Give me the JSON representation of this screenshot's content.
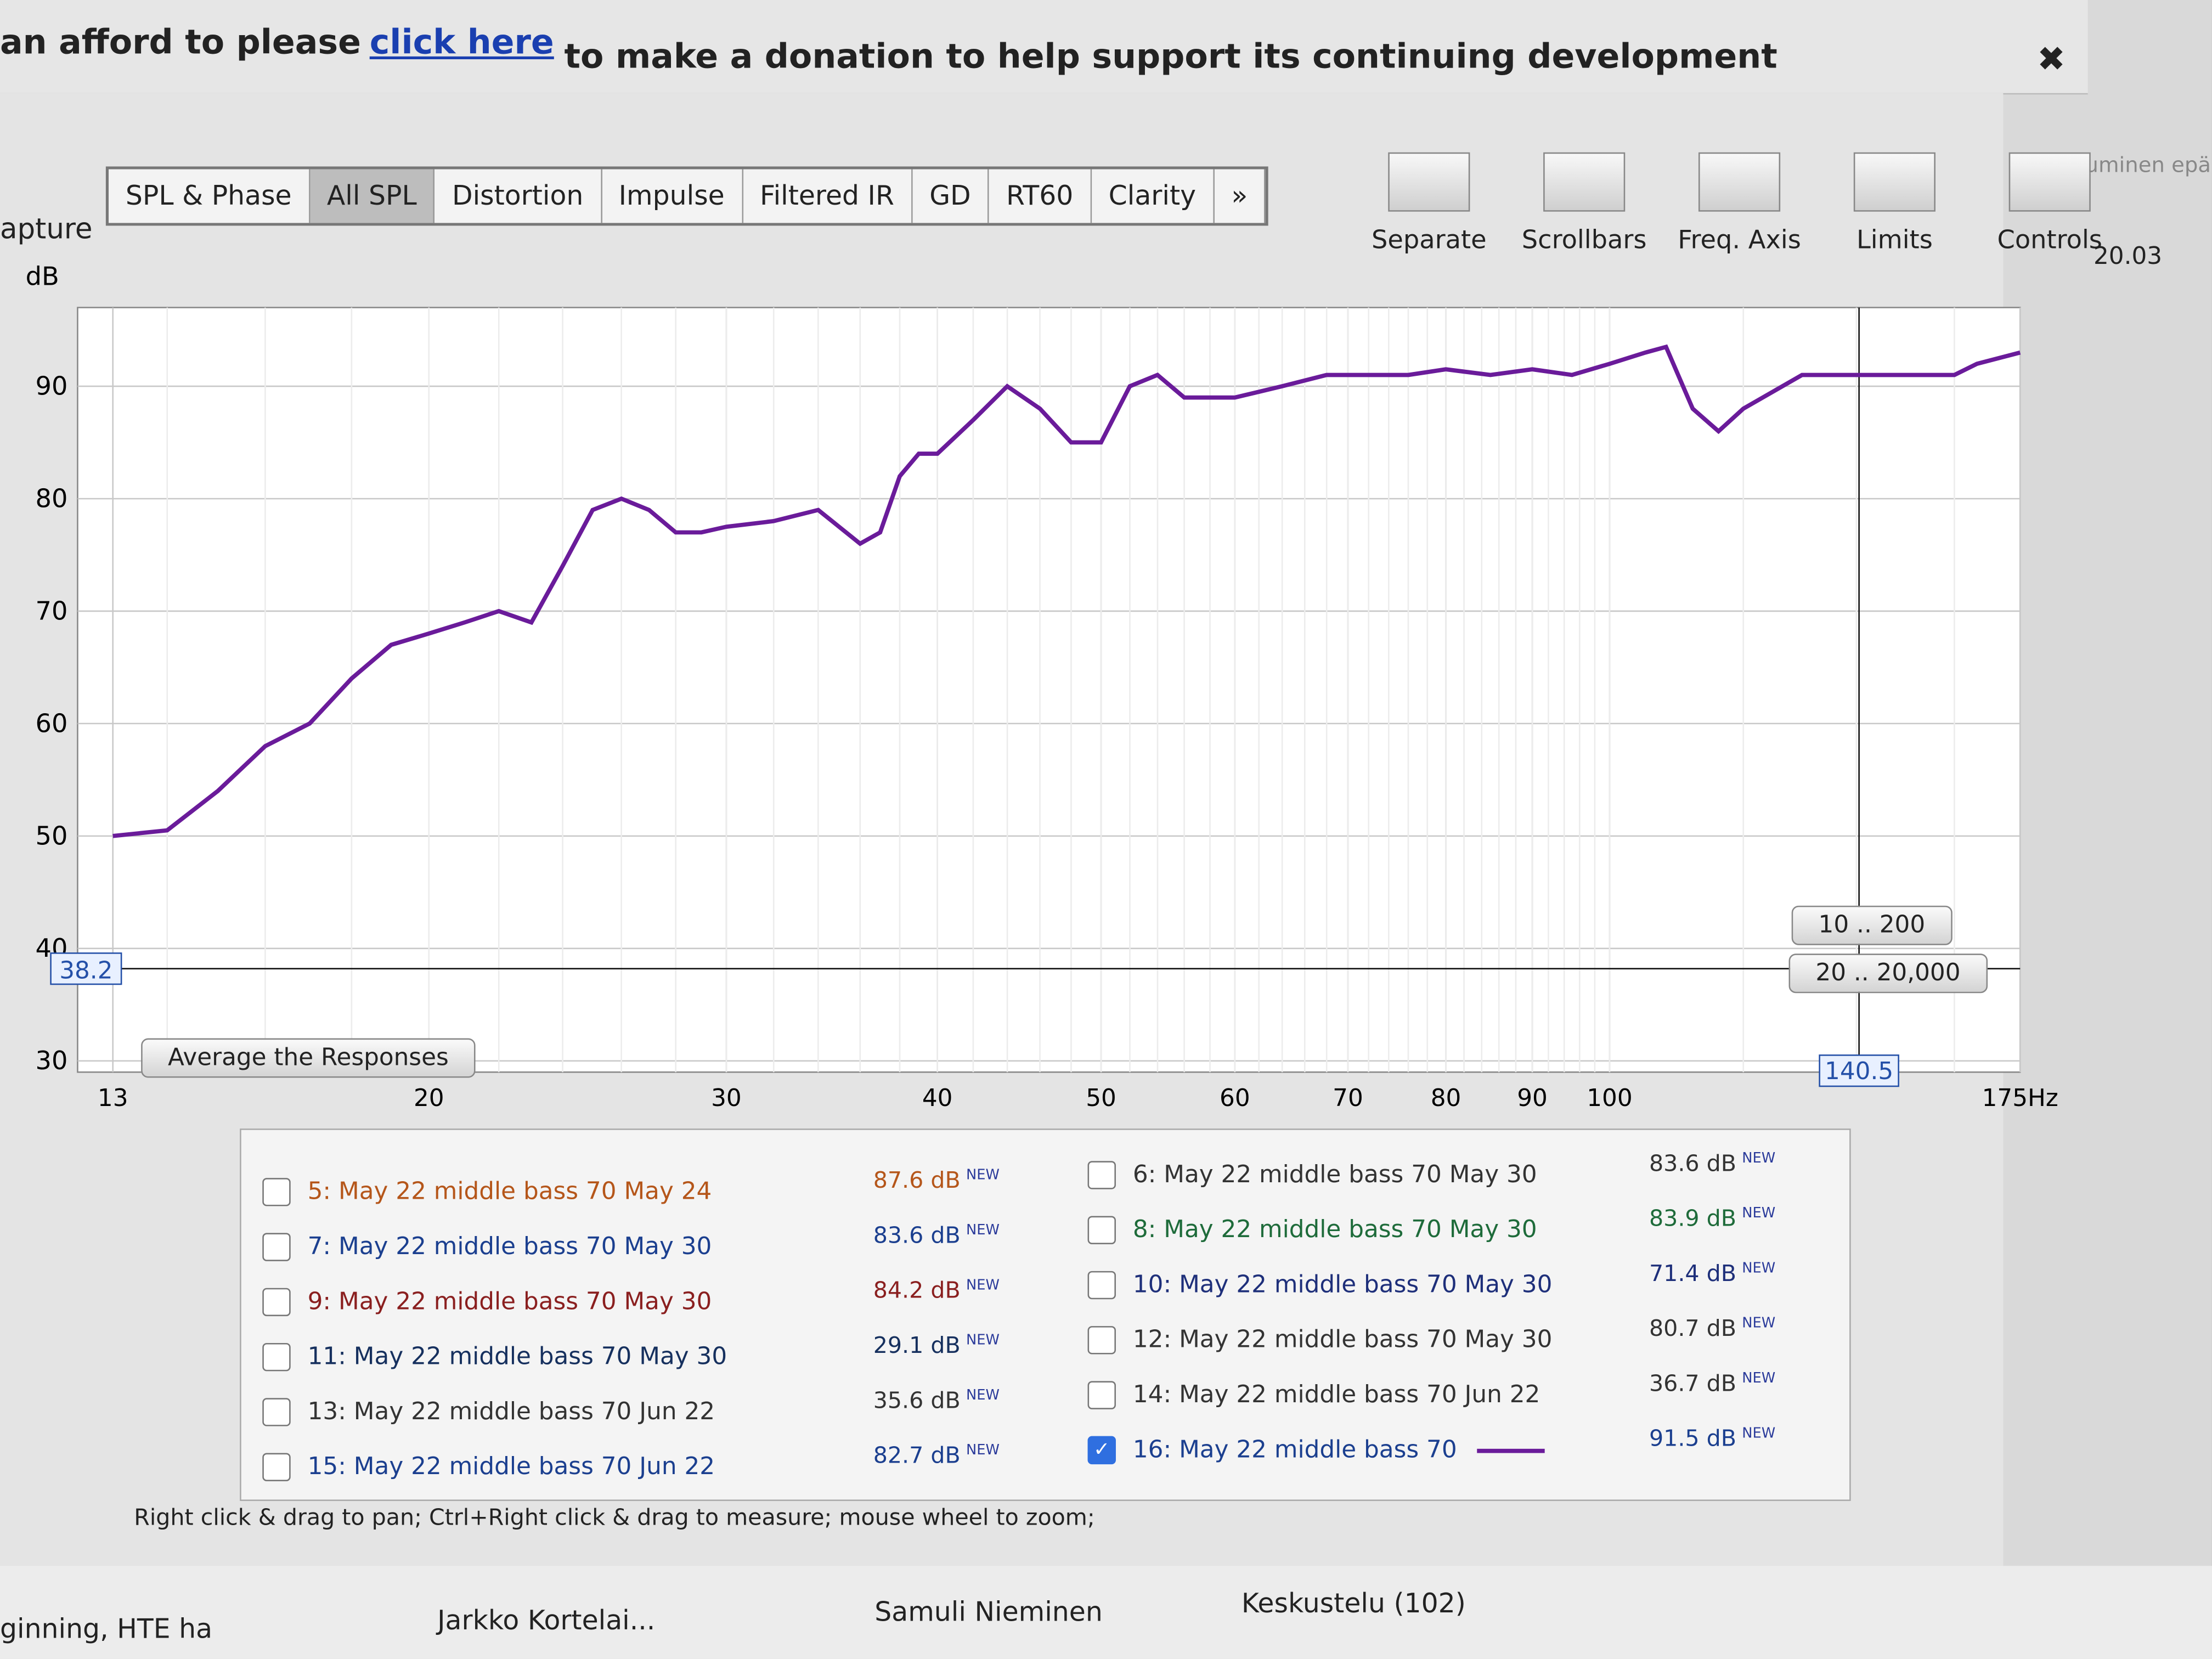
{
  "banner": {
    "before": "an afford to please",
    "link": "click here",
    "after": "to make a donation to help support its continuing development",
    "close": "✖"
  },
  "side_label": "apture",
  "tabs": [
    "SPL & Phase",
    "All SPL",
    "Distortion",
    "Impulse",
    "Filtered IR",
    "GD",
    "RT60",
    "Clarity",
    "»"
  ],
  "active_tab_index": 1,
  "tools": [
    "Separate",
    "Scrollbars",
    "Freq. Axis",
    "Limits",
    "Controls"
  ],
  "side_right": [
    "uminen epä",
    "20.03"
  ],
  "chart_data": {
    "type": "line",
    "y_label": "dB",
    "x": [
      13,
      14,
      15,
      16,
      17,
      18,
      19,
      20,
      21,
      22,
      23,
      24,
      25,
      26,
      27,
      28,
      29,
      30,
      32,
      34,
      36,
      37,
      38,
      39,
      40,
      42,
      44,
      46,
      48,
      50,
      52,
      54,
      56,
      58,
      60,
      64,
      68,
      72,
      76,
      80,
      85,
      90,
      95,
      100,
      105,
      108,
      112,
      116,
      120,
      130,
      140,
      150,
      160,
      165,
      175
    ],
    "series": [
      {
        "name": "16: May 22 middle bass 70",
        "color": "#6a1b9a",
        "values": [
          50,
          50.5,
          54,
          58,
          60,
          64,
          67,
          68,
          69,
          70,
          69,
          74,
          79,
          80,
          79,
          77,
          77,
          77.5,
          78,
          79,
          76,
          77,
          82,
          84,
          84,
          87,
          90,
          88,
          85,
          85,
          90,
          91,
          89,
          89,
          89,
          90,
          91,
          91,
          91,
          91.5,
          91,
          91.5,
          91,
          92,
          93,
          93.5,
          88,
          86,
          88,
          91,
          91,
          91,
          91,
          92,
          93
        ]
      }
    ],
    "xlim": [
      13,
      175
    ],
    "ylim": [
      29,
      97
    ],
    "log_x": true,
    "grid": true,
    "yticks": [
      30,
      40,
      50,
      60,
      70,
      80,
      90
    ],
    "xticks": [
      13,
      20,
      30,
      40,
      50,
      60,
      70,
      80,
      90,
      100,
      {
        "value": 175,
        "label": "175Hz"
      }
    ],
    "cursor_y": {
      "value": 38.2,
      "label": "38.2"
    },
    "cursor_x": {
      "value": 140.5,
      "label": "140.5"
    }
  },
  "range_buttons": [
    "10 .. 200",
    "20 .. 20,000"
  ],
  "average_button": "Average the Responses",
  "legend": [
    {
      "label": "5: May 22 middle bass 70 May 24",
      "value": "87.6 dB",
      "tag": "NEW",
      "checked": false,
      "color": "#b5561a"
    },
    {
      "label": "6: May 22 middle bass 70 May 30",
      "value": "83.6 dB",
      "tag": "NEW",
      "checked": false,
      "color": "#333333"
    },
    {
      "label": "7: May 22 middle bass 70 May 30",
      "value": "83.6 dB",
      "tag": "NEW",
      "checked": false,
      "color": "#1b3f8f"
    },
    {
      "label": "8: May 22 middle bass 70 May 30",
      "value": "83.9 dB",
      "tag": "NEW",
      "checked": false,
      "color": "#1e6b3a"
    },
    {
      "label": "9: May 22 middle bass 70 May 30",
      "value": "84.2 dB",
      "tag": "NEW",
      "checked": false,
      "color": "#8a1f1f"
    },
    {
      "label": "10: May 22 middle bass 70 May 30",
      "value": "71.4 dB",
      "tag": "NEW",
      "checked": false,
      "color": "#1e2f7a"
    },
    {
      "label": "11: May 22 middle bass 70 May 30",
      "value": "29.1 dB",
      "tag": "NEW",
      "checked": false,
      "color": "#16305e"
    },
    {
      "label": "12: May 22 middle bass 70 May 30",
      "value": "80.7 dB",
      "tag": "NEW",
      "checked": false,
      "color": "#333333"
    },
    {
      "label": "13: May 22 middle bass 70 Jun 22",
      "value": "35.6 dB",
      "tag": "NEW",
      "checked": false,
      "color": "#333333"
    },
    {
      "label": "14: May 22 middle bass 70 Jun 22",
      "value": "36.7 dB",
      "tag": "NEW",
      "checked": false,
      "color": "#333333"
    },
    {
      "label": "15: May 22 middle bass 70 Jun 22",
      "value": "82.7 dB",
      "tag": "NEW",
      "checked": false,
      "color": "#1b3f8f"
    },
    {
      "label": "16: May 22 middle bass 70",
      "value": "91.5 dB",
      "tag": "NEW",
      "checked": true,
      "color": "#1b3f8f"
    }
  ],
  "status": "Right click & drag to pan; Ctrl+Right click & drag to measure; mouse wheel to zoom;",
  "taskbar": [
    "ginning, HTE ha",
    "Jarkko Kortelai...",
    "Samuli Nieminen",
    "Keskustelu (102)"
  ]
}
